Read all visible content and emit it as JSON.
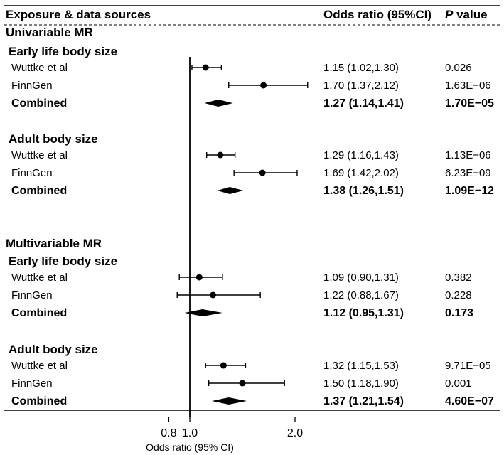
{
  "header": {
    "col_exposure": "Exposure & data sources",
    "col_or": "Odds ratio (95%CI)",
    "col_p_italic": "P",
    "col_p_rest": " value"
  },
  "chart_data": {
    "type": "forest",
    "xlabel": "Odds ratio (95% CI)",
    "xticks": [
      0.8,
      1.0,
      2.0
    ],
    "xtick_labels": [
      "0.8",
      "1.0",
      "2.0"
    ],
    "reference_line": 1.0,
    "sections": [
      {
        "title": "Univariable MR",
        "groups": [
          {
            "title": "Early life body size",
            "rows": [
              {
                "label": "Wuttke et al",
                "or": 1.15,
                "lo": 1.02,
                "hi": 1.3,
                "or_text": "1.15 (1.02,1.30)",
                "p_text": "0.026",
                "combined": false
              },
              {
                "label": "FinnGen",
                "or": 1.7,
                "lo": 1.37,
                "hi": 2.12,
                "or_text": "1.70 (1.37,2.12)",
                "p_text": "1.63E−06",
                "combined": false
              },
              {
                "label": "Combined",
                "or": 1.27,
                "lo": 1.14,
                "hi": 1.41,
                "or_text": "1.27 (1.14,1.41)",
                "p_text": "1.70E−05",
                "combined": true
              }
            ]
          },
          {
            "title": "Adult body size",
            "rows": [
              {
                "label": "Wuttke et al",
                "or": 1.29,
                "lo": 1.16,
                "hi": 1.43,
                "or_text": "1.29 (1.16,1.43)",
                "p_text": "1.13E−06",
                "combined": false
              },
              {
                "label": "FinnGen",
                "or": 1.69,
                "lo": 1.42,
                "hi": 2.02,
                "or_text": "1.69 (1.42,2.02)",
                "p_text": "6.23E−09",
                "combined": false
              },
              {
                "label": "Combined",
                "or": 1.38,
                "lo": 1.26,
                "hi": 1.51,
                "or_text": "1.38 (1.26,1.51)",
                "p_text": "1.09E−12",
                "combined": true
              }
            ]
          }
        ]
      },
      {
        "title": "Multivariable MR",
        "groups": [
          {
            "title": "Early life body size",
            "rows": [
              {
                "label": "Wuttke et al",
                "or": 1.09,
                "lo": 0.9,
                "hi": 1.31,
                "or_text": "1.09 (0.90,1.31)",
                "p_text": "0.382",
                "combined": false
              },
              {
                "label": "FinnGen",
                "or": 1.22,
                "lo": 0.88,
                "hi": 1.67,
                "or_text": "1.22 (0.88,1.67)",
                "p_text": "0.228",
                "combined": false
              },
              {
                "label": "Combined",
                "or": 1.12,
                "lo": 0.95,
                "hi": 1.31,
                "or_text": "1.12 (0.95,1.31)",
                "p_text": "0.173",
                "combined": true
              }
            ]
          },
          {
            "title": "Adult body size",
            "rows": [
              {
                "label": "Wuttke et al",
                "or": 1.32,
                "lo": 1.15,
                "hi": 1.53,
                "or_text": "1.32 (1.15,1.53)",
                "p_text": "9.71E−05",
                "combined": false
              },
              {
                "label": "FinnGen",
                "or": 1.5,
                "lo": 1.18,
                "hi": 1.9,
                "or_text": "1.50 (1.18,1.90)",
                "p_text": "0.001",
                "combined": false
              },
              {
                "label": "Combined",
                "or": 1.37,
                "lo": 1.21,
                "hi": 1.54,
                "or_text": "1.37 (1.21,1.54)",
                "p_text": "4.60E−07",
                "combined": true
              }
            ]
          }
        ]
      }
    ]
  }
}
